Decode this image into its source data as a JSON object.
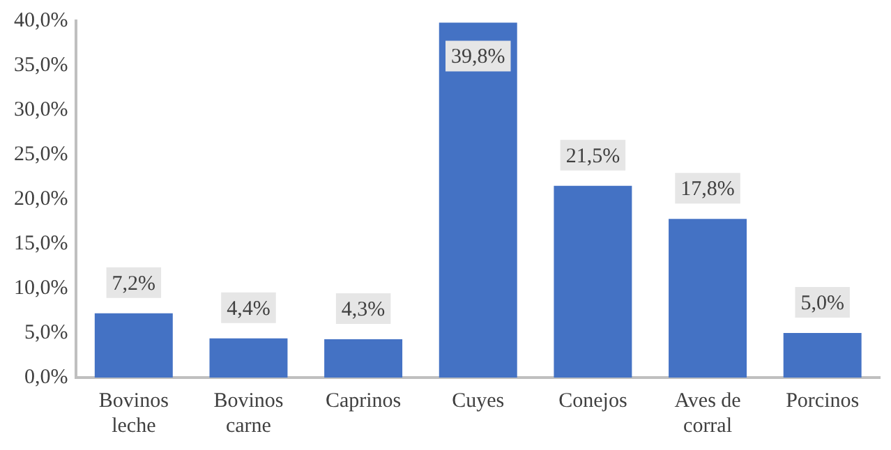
{
  "chart_data": {
    "type": "bar",
    "categories": [
      "Bovinos\nleche",
      "Bovinos\ncarne",
      "Caprinos",
      "Cuyes",
      "Conejos",
      "Aves de\ncorral",
      "Porcinos"
    ],
    "values": [
      7.2,
      4.4,
      4.3,
      39.8,
      21.5,
      17.8,
      5.0
    ],
    "value_labels": [
      "7,2%",
      "4,4%",
      "4,3%",
      "39,8%",
      "21,5%",
      "17,8%",
      "5,0%"
    ],
    "color": "#4472c4",
    "ylim": [
      0,
      40
    ],
    "yticks": [
      {
        "value": 0,
        "label": "0,0%"
      },
      {
        "value": 5,
        "label": "5,0%"
      },
      {
        "value": 10,
        "label": "10,0%"
      },
      {
        "value": 15,
        "label": "15,0%"
      },
      {
        "value": 20,
        "label": "20,0%"
      },
      {
        "value": 25,
        "label": "25,0%"
      },
      {
        "value": 30,
        "label": "30,0%"
      },
      {
        "value": 35,
        "label": "35,0%"
      },
      {
        "value": 40,
        "label": "40,0%"
      }
    ],
    "grid": false,
    "legend": false
  }
}
